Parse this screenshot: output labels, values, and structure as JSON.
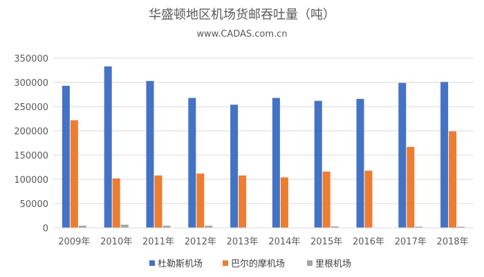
{
  "chart_data": {
    "type": "bar",
    "title": "华盛顿地区机场货邮吞吐量（吨）",
    "subtitle": "www.CADAS.com.cn",
    "categories": [
      "2009年",
      "2010年",
      "2011年",
      "2012年",
      "2013年",
      "2014年",
      "2015年",
      "2016年",
      "2017年",
      "2018年"
    ],
    "series": [
      {
        "name": "杜勒斯机场",
        "color": "#4472c4",
        "values": [
          293000,
          333000,
          303000,
          268000,
          254000,
          268000,
          262000,
          266000,
          299000,
          301000
        ]
      },
      {
        "name": "巴尔的摩机场",
        "color": "#ed7d31",
        "values": [
          222000,
          102000,
          108000,
          112000,
          108000,
          104000,
          116000,
          118000,
          167000,
          199000
        ]
      },
      {
        "name": "里根机场",
        "color": "#a5a5a5",
        "values": [
          4500,
          6500,
          4500,
          4500,
          0,
          0,
          3000,
          0,
          2500,
          2500
        ]
      }
    ],
    "ylim": [
      0,
      350000
    ],
    "yticks": [
      "0",
      "50000",
      "100000",
      "150000",
      "200000",
      "250000",
      "300000",
      "350000"
    ],
    "grid": true,
    "legend_position": "bottom"
  }
}
